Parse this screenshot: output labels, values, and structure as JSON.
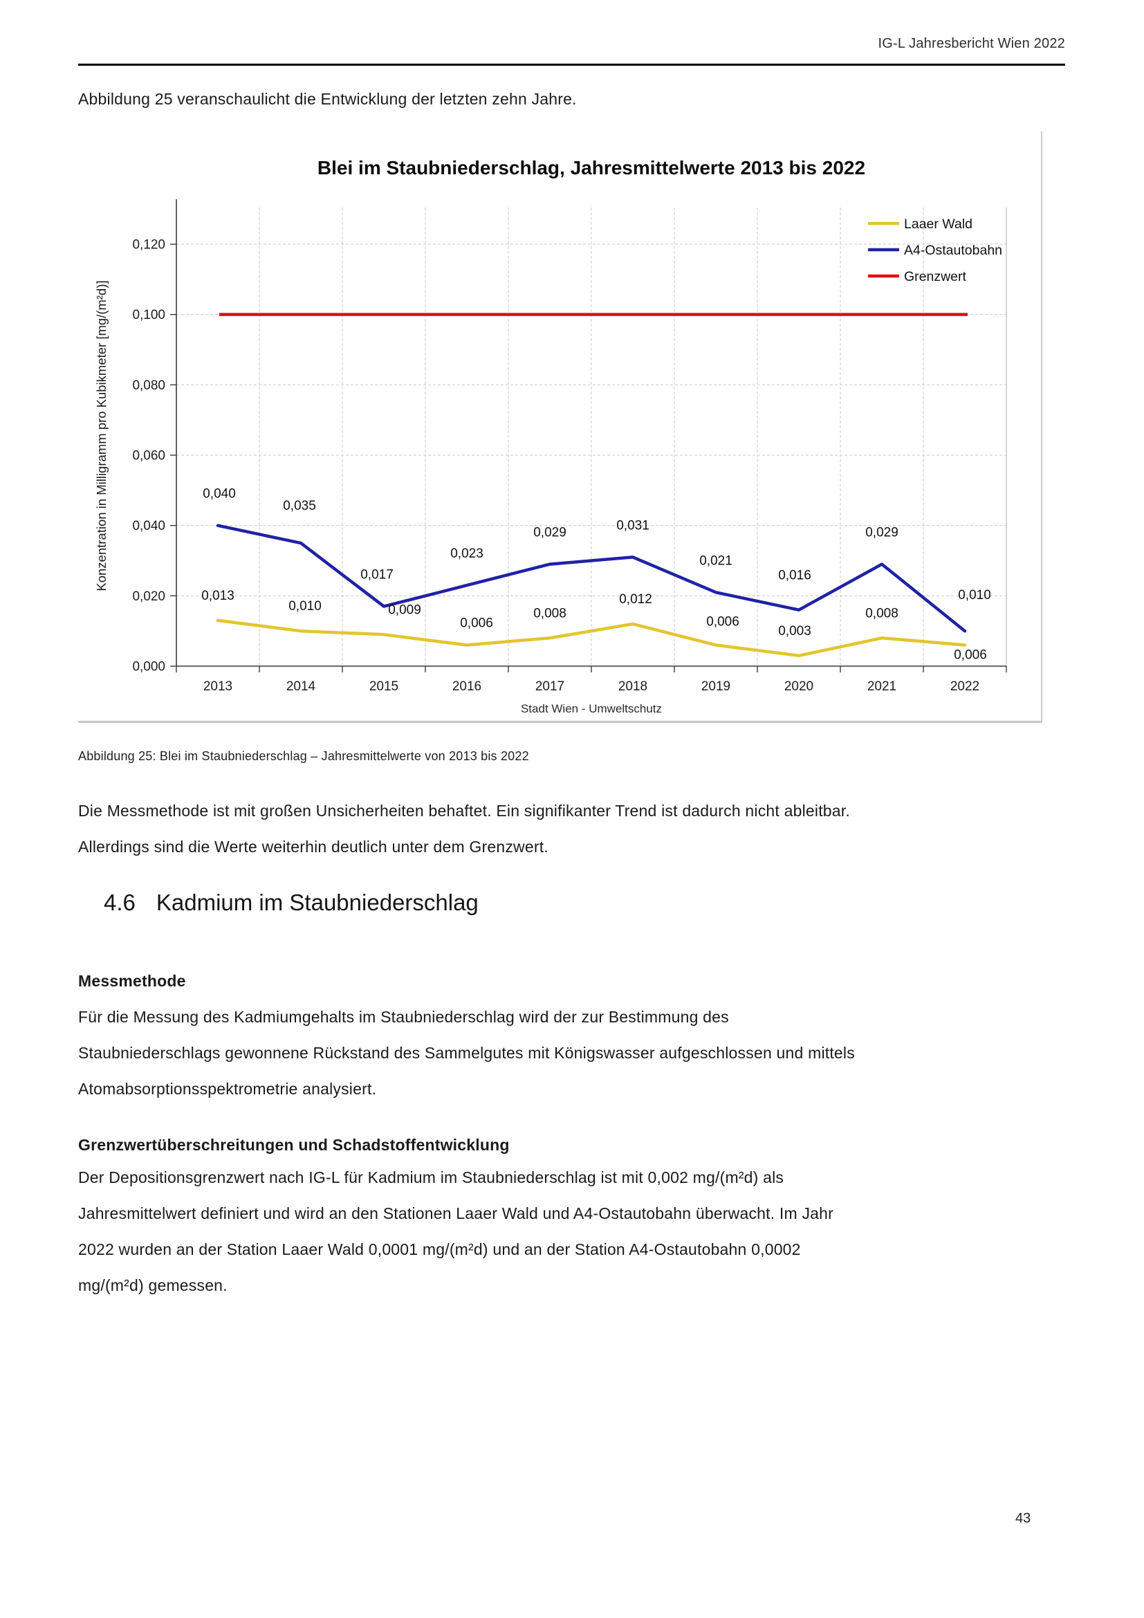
{
  "page": {
    "header": "IG-L Jahresbericht Wien 2022",
    "page_number": "43"
  },
  "intro": "Abbildung 25 veranschaulicht die Entwicklung der letzten zehn Jahre.",
  "figure_caption": "Abbildung 25: Blei im Staubniederschlag – Jahresmittelwerte von 2013 bis 2022",
  "paragraph1_lines": [
    "Die Messmethode ist mit großen Unsicherheiten behaftet. Ein signifikanter Trend ist dadurch nicht ableitbar.",
    "Allerdings sind die Werte weiterhin deutlich unter dem Grenzwert."
  ],
  "section": {
    "number": "4.6",
    "title": "Kadmium im Staubniederschlag"
  },
  "subheading1": "Messmethode",
  "paragraph2_lines": [
    "Für die Messung des Kadmiumgehalts im Staubniederschlag wird der zur Bestimmung des",
    "Staubniederschlags gewonnene Rückstand des Sammelgutes mit Königswasser aufgeschlossen und mittels",
    "Atomabsorptionsspektrometrie analysiert."
  ],
  "subheading2": "Grenzwertüberschreitungen und Schadstoffentwicklung",
  "paragraph3_lines": [
    "Der Depositionsgrenzwert nach IG-L für Kadmium im Staubniederschlag ist mit 0,002 mg/(m²d) als",
    "Jahresmittelwert definiert und wird an den Stationen Laaer Wald und A4-Ostautobahn überwacht. Im Jahr",
    "2022 wurden an der Station Laaer Wald 0,0001 mg/(m²d) und an der Station A4-Ostautobahn 0,0002",
    "mg/(m²d) gemessen."
  ],
  "chart_data": {
    "type": "line",
    "title": "Blei im Staubniederschlag, Jahresmittelwerte 2013 bis 2022",
    "ylabel": "Konzentration in Milligramm pro Kubikmeter [mg/(m²d)]",
    "source": "Stadt Wien - Umweltschutz",
    "categories": [
      "2013",
      "2014",
      "2015",
      "2016",
      "2017",
      "2018",
      "2019",
      "2020",
      "2021",
      "2022"
    ],
    "ylim": [
      0,
      0.13
    ],
    "yticks": {
      "values": [
        0,
        0.02,
        0.04,
        0.06,
        0.08,
        0.1,
        0.12
      ],
      "labels": [
        "0,000",
        "0,020",
        "0,040",
        "0,060",
        "0,080",
        "0,100",
        "0,120"
      ]
    },
    "grid": "dashed",
    "legend_position": "top-right",
    "series": [
      {
        "name": "Laaer Wald",
        "color": "#E3C52E",
        "values": [
          0.013,
          0.01,
          0.009,
          0.006,
          0.008,
          0.012,
          0.006,
          0.003,
          0.008,
          0.006
        ],
        "labels": [
          "0,013",
          "0,010",
          "0,009",
          "0,006",
          "0,008",
          "0,012",
          "0,006",
          "0,003",
          "0,008",
          "0,006"
        ]
      },
      {
        "name": "A4-Ostautobahn",
        "color": "#2022A5",
        "values": [
          0.04,
          0.035,
          0.017,
          0.023,
          0.029,
          0.031,
          0.021,
          0.016,
          0.029,
          0.01
        ],
        "labels": [
          "0,040",
          "0,035",
          "0,017",
          "0,023",
          "0,029",
          "0,031",
          "0,021",
          "0,016",
          "0,029",
          "0,010"
        ]
      },
      {
        "name": "Grenzwert",
        "color": "#E01111",
        "value": 0.1
      }
    ]
  }
}
